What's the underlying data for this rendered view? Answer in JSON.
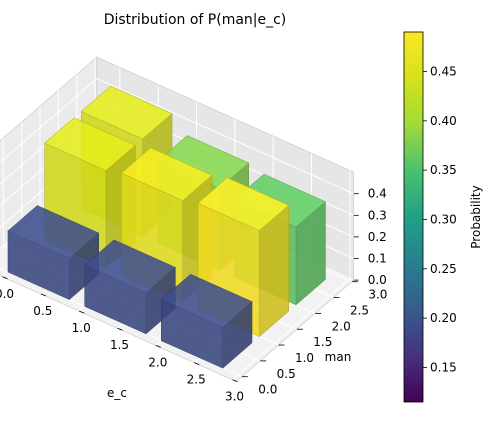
{
  "chart_data": {
    "type": "bar3d",
    "title": "Distribution of P(man|e_c)",
    "xlabel": "e_c",
    "ylabel": "man",
    "zlabel": "",
    "x_ticks": [
      "0.0",
      "0.5",
      "1.0",
      "1.5",
      "2.0",
      "2.5",
      "3.0"
    ],
    "y_ticks": [
      "0.0",
      "0.5",
      "1.0",
      "1.5",
      "2.0",
      "2.5",
      "3.0"
    ],
    "z_ticks": [
      "0.0",
      "0.1",
      "0.2",
      "0.3",
      "0.4"
    ],
    "xlim": [
      0,
      3
    ],
    "ylim": [
      0,
      3
    ],
    "zlim": [
      0,
      0.5
    ],
    "bars": [
      {
        "e_c": 0,
        "man": 0,
        "value": 0.19
      },
      {
        "e_c": 0,
        "man": 1,
        "value": 0.45
      },
      {
        "e_c": 0,
        "man": 2,
        "value": 0.45
      },
      {
        "e_c": 1,
        "man": 0,
        "value": 0.19
      },
      {
        "e_c": 1,
        "man": 1,
        "value": 0.47
      },
      {
        "e_c": 1,
        "man": 2,
        "value": 0.38
      },
      {
        "e_c": 2,
        "man": 0,
        "value": 0.19
      },
      {
        "e_c": 2,
        "man": 1,
        "value": 0.49
      },
      {
        "e_c": 2,
        "man": 2,
        "value": 0.36
      }
    ],
    "colorbar": {
      "label": "Probability",
      "colormap": "viridis",
      "range": [
        0.115,
        0.49
      ],
      "ticks": [
        "0.15",
        "0.20",
        "0.25",
        "0.30",
        "0.35",
        "0.40",
        "0.45"
      ],
      "tick_values": [
        0.15,
        0.2,
        0.25,
        0.3,
        0.35,
        0.4,
        0.45
      ]
    },
    "grid": true
  }
}
